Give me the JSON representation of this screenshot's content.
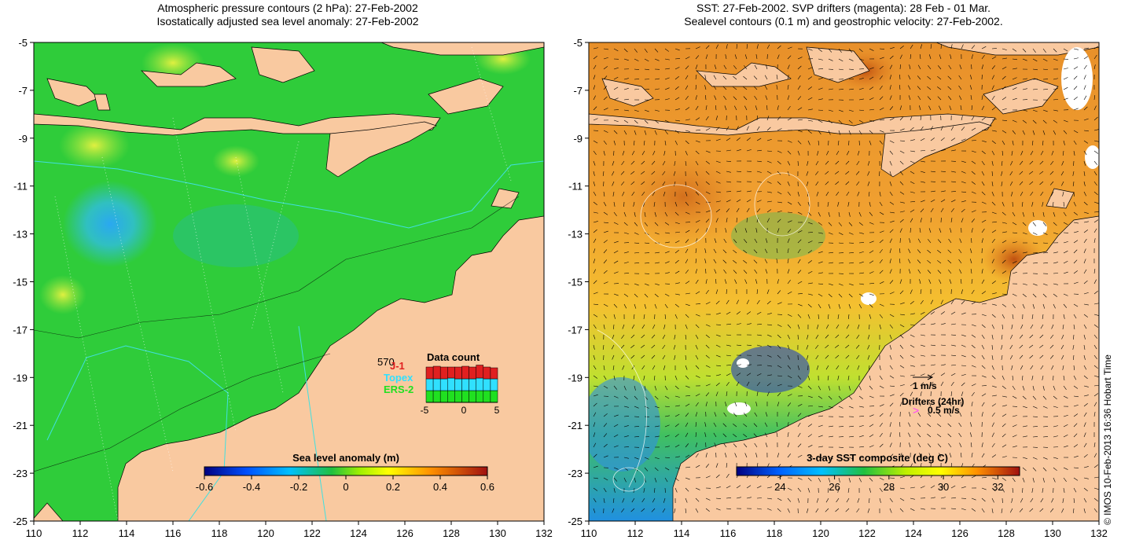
{
  "left_panel": {
    "title_line1": "Atmospheric pressure contours (2 hPa): 27-Feb-2002",
    "title_line2": "Isostatically adjusted sea level anomaly: 27-Feb-2002",
    "colorbar": {
      "label": "Sea level anomaly (m)",
      "ticks": [
        "-0.6",
        "-0.4",
        "-0.2",
        "0",
        "0.2",
        "0.4",
        "0.6"
      ],
      "range": [
        -0.6,
        0.6
      ]
    },
    "data_count": {
      "title": "Data count",
      "max_label": "570",
      "satellites": [
        {
          "name": "J-1",
          "color": "#e02020"
        },
        {
          "name": "Topex",
          "color": "#30e0ff"
        },
        {
          "name": "ERS-2",
          "color": "#20e020"
        }
      ],
      "axis_ticks": [
        "-5",
        "0",
        "5"
      ],
      "bars_j1": [
        0.3,
        0.32,
        0.3,
        0.28,
        0.3,
        0.32,
        0.3,
        0.33,
        0.3,
        0.28
      ],
      "bars_topex": [
        0.3,
        0.3,
        0.3,
        0.32,
        0.3,
        0.3,
        0.3,
        0.32,
        0.3,
        0.3
      ],
      "bars_ers2": [
        0.3,
        0.3,
        0.3,
        0.3,
        0.3,
        0.3,
        0.3,
        0.3,
        0.3,
        0.3
      ]
    }
  },
  "right_panel": {
    "title_line1": "SST: 27-Feb-2002. SVP drifters (magenta): 28 Feb - 01 Mar.",
    "title_line2": "Sealevel contours (0.1 m) and geostrophic velocity: 27-Feb-2002.",
    "colorbar": {
      "label": "3-day SST composite (deg C)",
      "ticks": [
        "24",
        "26",
        "28",
        "30",
        "32"
      ],
      "range": [
        22.4,
        32.8
      ]
    },
    "velocity_legend": "1 m/s",
    "drifter_legend_title": "Drifters (24hr)",
    "drifter_legend_value": "0.5 m/s",
    "drifter_marker": ">",
    "copyright": "© IMOS 10-Feb-2013 16:36 Hobart Time"
  },
  "axes": {
    "lon_ticks": [
      "110",
      "112",
      "114",
      "116",
      "118",
      "120",
      "122",
      "124",
      "126",
      "128",
      "130",
      "132"
    ],
    "lat_ticks": [
      "-5",
      "-7",
      "-9",
      "-11",
      "-13",
      "-15",
      "-17",
      "-19",
      "-21",
      "-23",
      "-25"
    ]
  },
  "colors": {
    "land": "#f9c9a0",
    "ocean_sla": "#22cc33",
    "ocean_sst": "#f4a020"
  }
}
